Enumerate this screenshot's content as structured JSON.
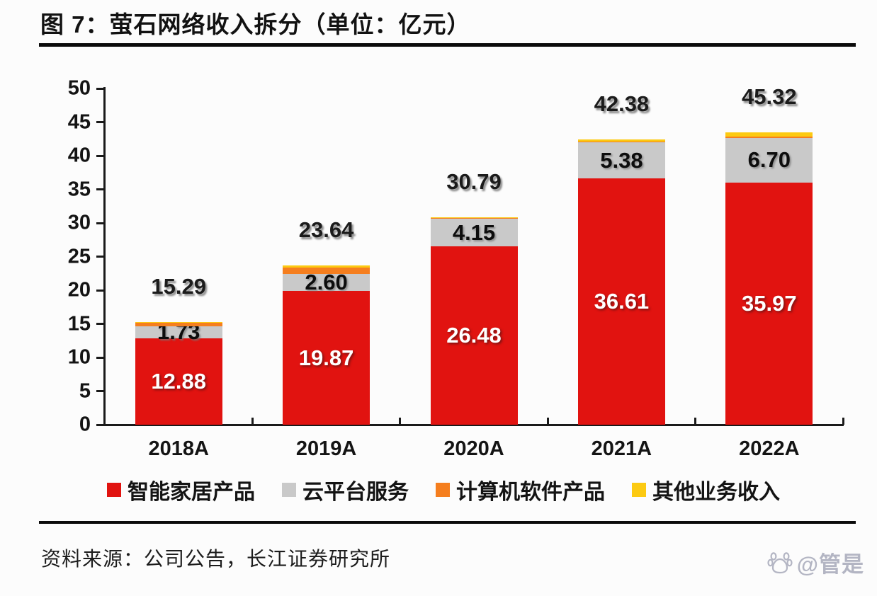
{
  "figure": {
    "title": "图 7：萤石网络收入拆分（单位：亿元）",
    "source": "资料来源：公司公告，长江证券研究所",
    "watermark": "@管是"
  },
  "chart_data": {
    "type": "bar",
    "stacked": true,
    "title": "图 7：萤石网络收入拆分（单位：亿元）",
    "unit": "亿元",
    "categories": [
      "2018A",
      "2019A",
      "2020A",
      "2021A",
      "2022A"
    ],
    "series": [
      {
        "name": "智能家居产品",
        "color": "#e11310",
        "values": [
          12.88,
          19.87,
          26.48,
          36.61,
          35.97
        ],
        "labels_shown": true
      },
      {
        "name": "云平台服务",
        "color": "#c9c9c9",
        "values": [
          1.73,
          2.6,
          4.15,
          5.38,
          6.7
        ],
        "labels_shown": true
      },
      {
        "name": "计算机软件产品",
        "color": "#f57e1e",
        "values": [
          0.52,
          0.9,
          0.08,
          0.1,
          0.15
        ],
        "labels_shown": false,
        "values_are_estimates": true
      },
      {
        "name": "其他业务收入",
        "color": "#fcca12",
        "values": [
          0.16,
          0.27,
          0.08,
          0.29,
          0.7
        ],
        "labels_shown": false,
        "values_are_estimates": true
      }
    ],
    "totals": [
      15.29,
      23.64,
      30.79,
      42.38,
      45.32
    ],
    "totals_shown_above_bars": true,
    "xlabel": "",
    "ylabel": "",
    "ylim": [
      0,
      50
    ],
    "yticks": [
      0,
      5,
      10,
      15,
      20,
      25,
      30,
      35,
      40,
      45,
      50
    ],
    "grid": false,
    "legend_position": "bottom"
  }
}
